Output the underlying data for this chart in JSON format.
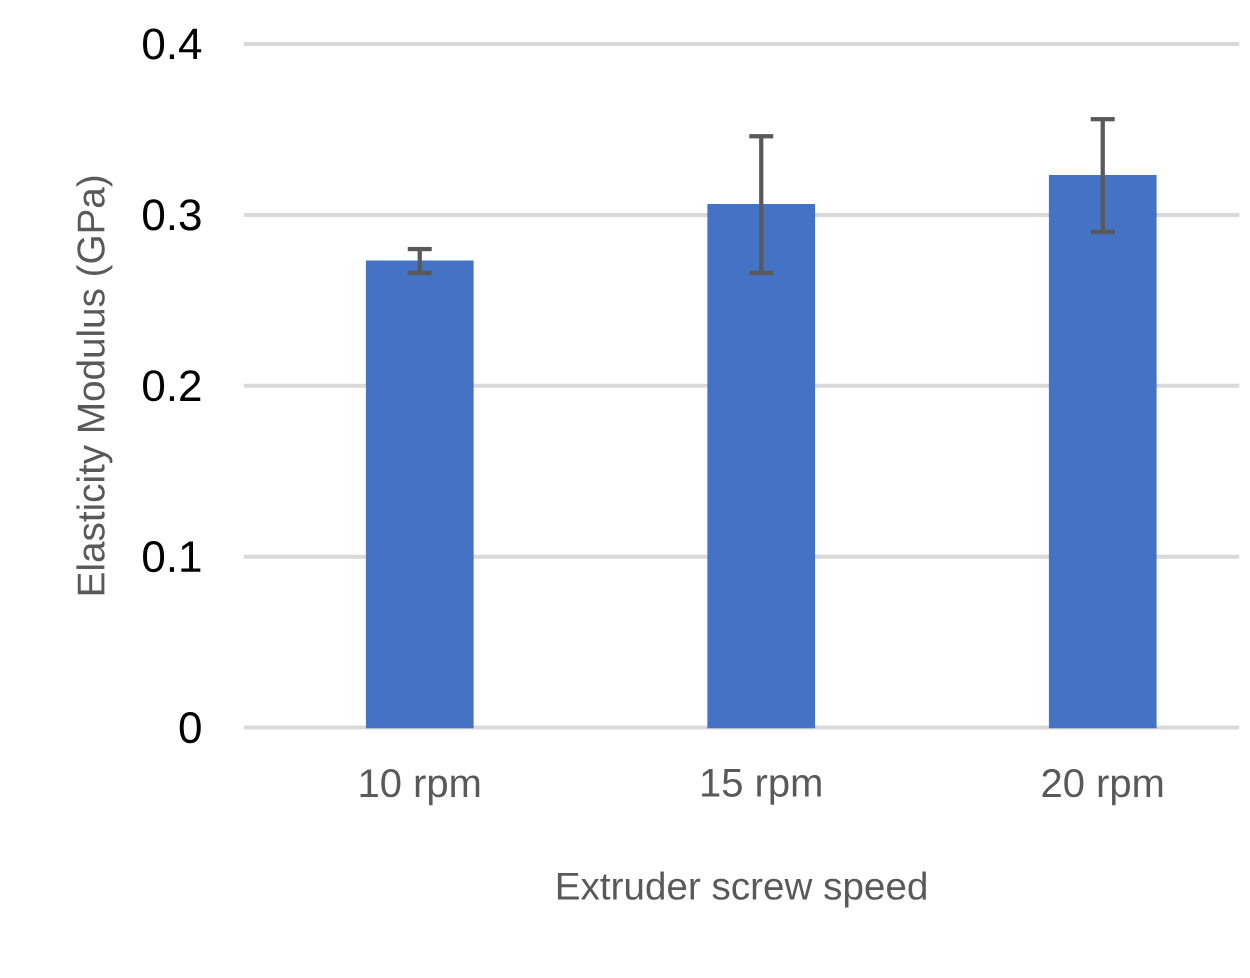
{
  "chart_data": {
    "type": "bar",
    "xlabel": "Extruder screw speed",
    "ylabel": "Elasticity Modulus (GPa)",
    "categories": [
      "10 rpm",
      "15 rpm",
      "20 rpm"
    ],
    "values": [
      0.273,
      0.306,
      0.323
    ],
    "errors": [
      0.007,
      0.04,
      0.033
    ],
    "color": "#4472c4",
    "ylim": [
      0,
      0.4
    ],
    "yticks": [
      0,
      0.1,
      0.2,
      0.3,
      0.4
    ],
    "grid": "y"
  }
}
